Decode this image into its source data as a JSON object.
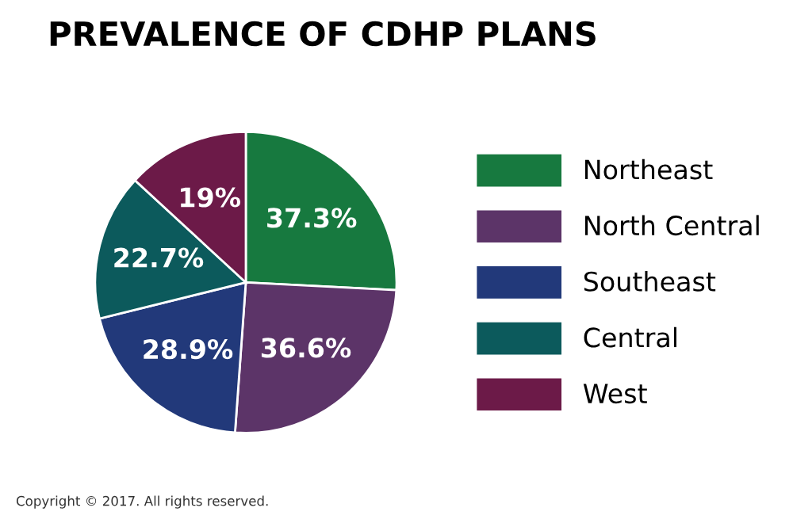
{
  "chart_data": {
    "type": "pie",
    "title": "PREVALENCE OF CDHP PLANS",
    "categories": [
      "Northeast",
      "North Central",
      "Southeast",
      "Central",
      "West"
    ],
    "values": [
      37.3,
      36.6,
      28.9,
      22.7,
      19
    ],
    "value_labels": [
      "37.3%",
      "36.6%",
      "28.9%",
      "22.7%",
      "19%"
    ],
    "colors": [
      "#17793f",
      "#5c3468",
      "#22397a",
      "#0c5a5c",
      "#6c1a48"
    ],
    "legend": "right",
    "annotations": [
      "Copyright © 2017. All rights reserved."
    ]
  }
}
